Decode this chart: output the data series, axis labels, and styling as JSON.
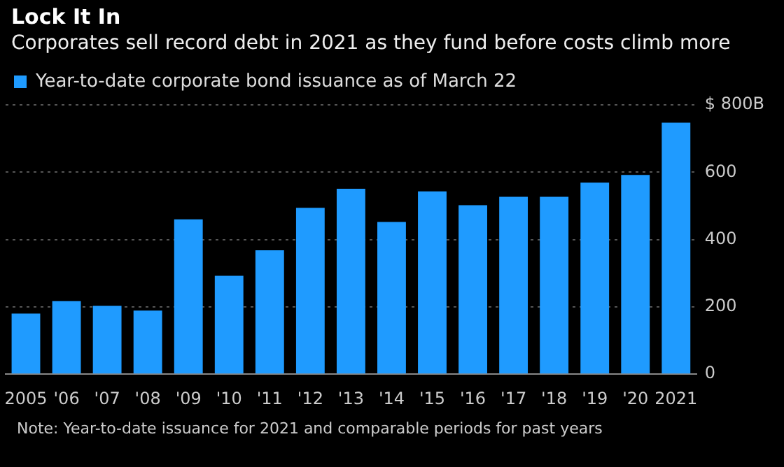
{
  "chart_data": {
    "type": "bar",
    "title": "Lock It In",
    "subtitle": "Corporates sell record debt in 2021 as they fund before costs climb more",
    "categories": [
      "2005",
      "'06",
      "'07",
      "'08",
      "'09",
      "'10",
      "'11",
      "'12",
      "'13",
      "'14",
      "'15",
      "'16",
      "'17",
      "'18",
      "'19",
      "'20",
      "2021"
    ],
    "series": [
      {
        "name": "Year-to-date corporate bond issuance as of March 22",
        "color": "#1f9bff",
        "values": [
          180,
          217,
          203,
          189,
          460,
          292,
          368,
          494,
          551,
          452,
          543,
          502,
          527,
          527,
          569,
          592,
          747
        ]
      }
    ],
    "ylim": [
      0,
      800
    ],
    "yticks": [
      0,
      200,
      400,
      600,
      {
        "value": 800,
        "label": "$ 800B"
      }
    ],
    "grid": "y",
    "legend": "top left",
    "annotations": [
      "Note: Year-to-date issuance for 2021 and comparable periods for past years"
    ]
  }
}
